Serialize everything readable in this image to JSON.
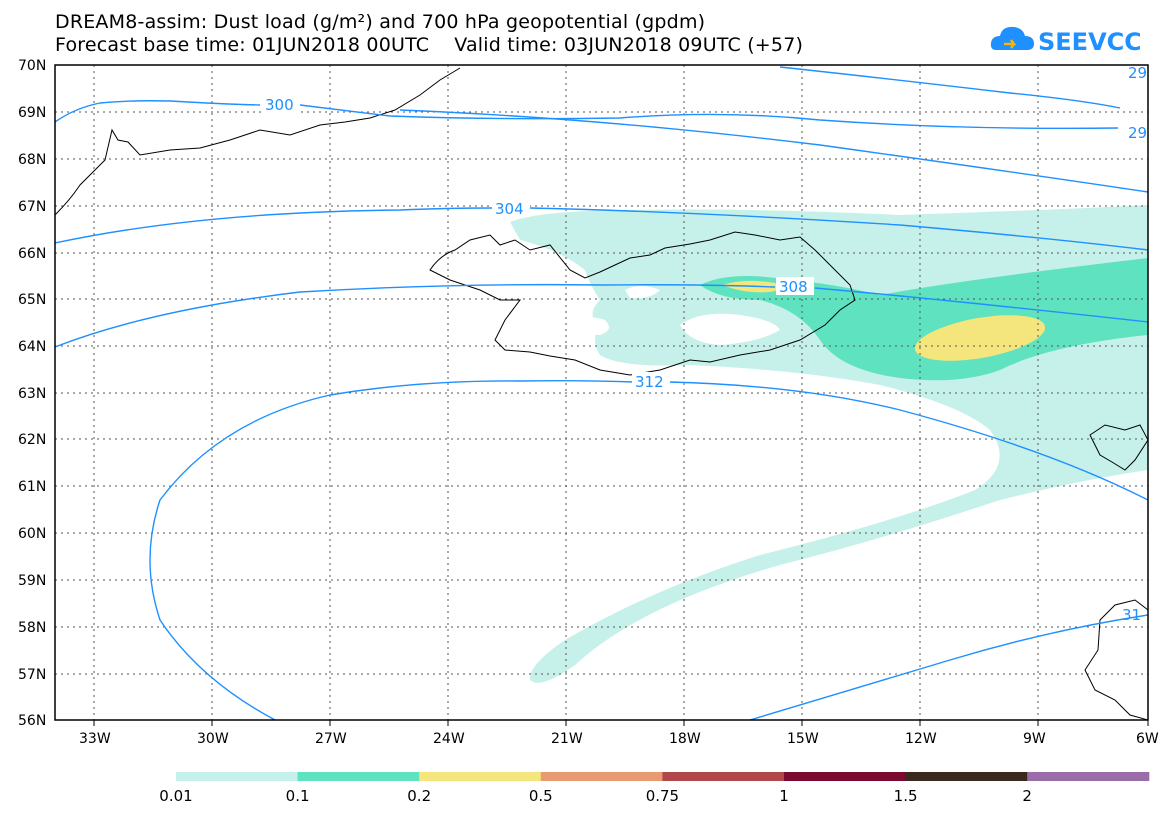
{
  "title_line1": "DREAM8-assim: Dust load (g/m²) and 700 hPa geopotential (gpdm)",
  "title_line2": "Forecast base time: 01JUN2018 00UTC    Valid time: 03JUN2018 09UTC (+57)",
  "logo_text": "SEEVCCC",
  "lat_labels": [
    "70N",
    "69N",
    "68N",
    "67N",
    "66N",
    "65N",
    "64N",
    "63N",
    "62N",
    "61N",
    "60N",
    "59N",
    "58N",
    "57N",
    "56N"
  ],
  "lon_labels": [
    "33W",
    "30W",
    "27W",
    "24W",
    "21W",
    "18W",
    "15W",
    "12W",
    "9W",
    "6W"
  ],
  "contour_labels": {
    "c300": "300",
    "c304": "304",
    "c308": "308",
    "c312": "312",
    "e1": "29",
    "e2": "29",
    "e3": "31"
  },
  "colorbar": {
    "labels": [
      "0.01",
      "0.1",
      "0.2",
      "0.5",
      "0.75",
      "1",
      "1.5",
      "2"
    ],
    "colors": [
      "#c6f1ea",
      "#5fe2c0",
      "#f4e67c",
      "#e89a70",
      "#b0484a",
      "#7a0a2f",
      "#3a2a1e",
      "#9a6da8"
    ]
  },
  "colors": {
    "contour": "#1e90ff",
    "low_dust": "#c6f1ea",
    "mid_dust": "#5fe2c0",
    "high_dust": "#f4e67c"
  }
}
